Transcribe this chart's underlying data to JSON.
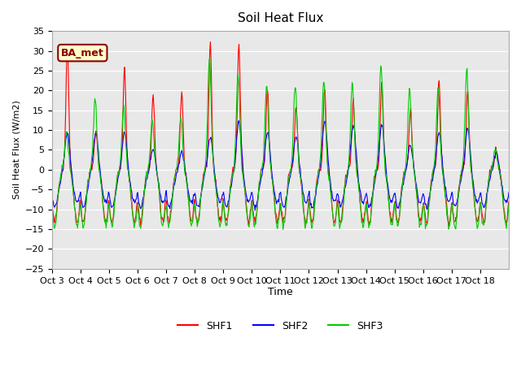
{
  "title": "Soil Heat Flux",
  "ylabel": "Soil Heat Flux (W/m2)",
  "xlabel": "Time",
  "ylim": [
    -25,
    35
  ],
  "background_color": "#ffffff",
  "plot_bg_color": "#e8e8e8",
  "annotation_text": "BA_met",
  "annotation_fg": "#8B0000",
  "annotation_bg": "#ffffcc",
  "series_colors": [
    "#ff0000",
    "#0000ff",
    "#00cc00"
  ],
  "series_names": [
    "SHF1",
    "SHF2",
    "SHF3"
  ],
  "x_tick_labels": [
    "Oct 3",
    "Oct 4",
    "Oct 5",
    "Oct 6",
    "Oct 7",
    "Oct 8",
    "Oct 9",
    "Oct 10",
    "Oct 11",
    "Oct 12",
    "Oct 13",
    "Oct 14",
    "Oct 15",
    "Oct 16",
    "Oct 17",
    "Oct 18"
  ],
  "n_days": 16,
  "pts_per_day": 48,
  "day_amp1": [
    31,
    10,
    25,
    19,
    19,
    32,
    31,
    20,
    16,
    20,
    17,
    22,
    15,
    22,
    20,
    5
  ],
  "day_amp2": [
    10,
    10,
    10,
    6,
    5,
    9,
    13,
    10,
    9,
    13,
    12,
    12,
    7,
    10,
    11,
    5
  ],
  "day_amp3": [
    9,
    18,
    16,
    12,
    13,
    28,
    24,
    21,
    21,
    22,
    22,
    26,
    20,
    20,
    25,
    5
  ]
}
